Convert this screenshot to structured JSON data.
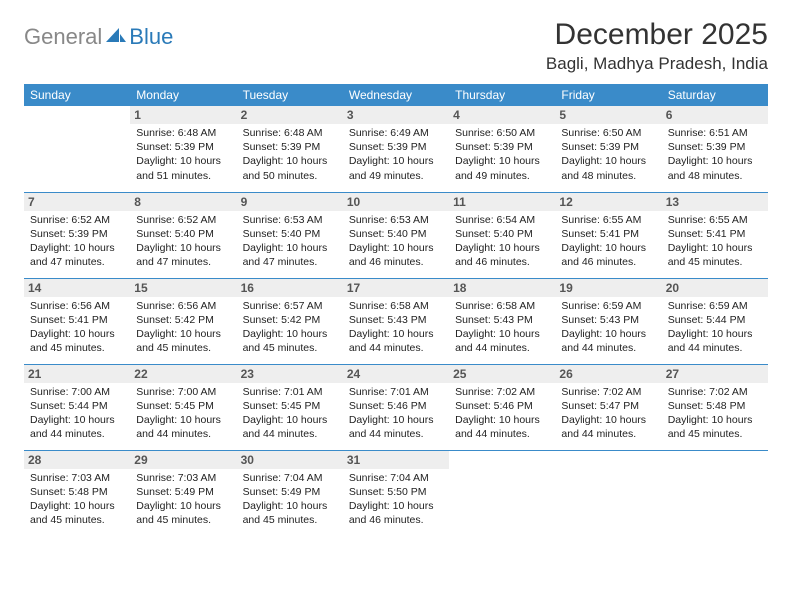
{
  "logo": {
    "part1": "General",
    "part2": "Blue"
  },
  "title": "December 2025",
  "location": "Bagli, Madhya Pradesh, India",
  "colors": {
    "header_bg": "#3a8bc9",
    "header_text": "#ffffff",
    "daynum_bg": "#eeeeee",
    "border": "#3a8bc9",
    "logo_gray": "#888888",
    "logo_blue": "#2a7ab8",
    "background": "#ffffff"
  },
  "day_headers": [
    "Sunday",
    "Monday",
    "Tuesday",
    "Wednesday",
    "Thursday",
    "Friday",
    "Saturday"
  ],
  "weeks": [
    [
      null,
      {
        "n": "1",
        "sr": "Sunrise: 6:48 AM",
        "ss": "Sunset: 5:39 PM",
        "dl": "Daylight: 10 hours and 51 minutes."
      },
      {
        "n": "2",
        "sr": "Sunrise: 6:48 AM",
        "ss": "Sunset: 5:39 PM",
        "dl": "Daylight: 10 hours and 50 minutes."
      },
      {
        "n": "3",
        "sr": "Sunrise: 6:49 AM",
        "ss": "Sunset: 5:39 PM",
        "dl": "Daylight: 10 hours and 49 minutes."
      },
      {
        "n": "4",
        "sr": "Sunrise: 6:50 AM",
        "ss": "Sunset: 5:39 PM",
        "dl": "Daylight: 10 hours and 49 minutes."
      },
      {
        "n": "5",
        "sr": "Sunrise: 6:50 AM",
        "ss": "Sunset: 5:39 PM",
        "dl": "Daylight: 10 hours and 48 minutes."
      },
      {
        "n": "6",
        "sr": "Sunrise: 6:51 AM",
        "ss": "Sunset: 5:39 PM",
        "dl": "Daylight: 10 hours and 48 minutes."
      }
    ],
    [
      {
        "n": "7",
        "sr": "Sunrise: 6:52 AM",
        "ss": "Sunset: 5:39 PM",
        "dl": "Daylight: 10 hours and 47 minutes."
      },
      {
        "n": "8",
        "sr": "Sunrise: 6:52 AM",
        "ss": "Sunset: 5:40 PM",
        "dl": "Daylight: 10 hours and 47 minutes."
      },
      {
        "n": "9",
        "sr": "Sunrise: 6:53 AM",
        "ss": "Sunset: 5:40 PM",
        "dl": "Daylight: 10 hours and 47 minutes."
      },
      {
        "n": "10",
        "sr": "Sunrise: 6:53 AM",
        "ss": "Sunset: 5:40 PM",
        "dl": "Daylight: 10 hours and 46 minutes."
      },
      {
        "n": "11",
        "sr": "Sunrise: 6:54 AM",
        "ss": "Sunset: 5:40 PM",
        "dl": "Daylight: 10 hours and 46 minutes."
      },
      {
        "n": "12",
        "sr": "Sunrise: 6:55 AM",
        "ss": "Sunset: 5:41 PM",
        "dl": "Daylight: 10 hours and 46 minutes."
      },
      {
        "n": "13",
        "sr": "Sunrise: 6:55 AM",
        "ss": "Sunset: 5:41 PM",
        "dl": "Daylight: 10 hours and 45 minutes."
      }
    ],
    [
      {
        "n": "14",
        "sr": "Sunrise: 6:56 AM",
        "ss": "Sunset: 5:41 PM",
        "dl": "Daylight: 10 hours and 45 minutes."
      },
      {
        "n": "15",
        "sr": "Sunrise: 6:56 AM",
        "ss": "Sunset: 5:42 PM",
        "dl": "Daylight: 10 hours and 45 minutes."
      },
      {
        "n": "16",
        "sr": "Sunrise: 6:57 AM",
        "ss": "Sunset: 5:42 PM",
        "dl": "Daylight: 10 hours and 45 minutes."
      },
      {
        "n": "17",
        "sr": "Sunrise: 6:58 AM",
        "ss": "Sunset: 5:43 PM",
        "dl": "Daylight: 10 hours and 44 minutes."
      },
      {
        "n": "18",
        "sr": "Sunrise: 6:58 AM",
        "ss": "Sunset: 5:43 PM",
        "dl": "Daylight: 10 hours and 44 minutes."
      },
      {
        "n": "19",
        "sr": "Sunrise: 6:59 AM",
        "ss": "Sunset: 5:43 PM",
        "dl": "Daylight: 10 hours and 44 minutes."
      },
      {
        "n": "20",
        "sr": "Sunrise: 6:59 AM",
        "ss": "Sunset: 5:44 PM",
        "dl": "Daylight: 10 hours and 44 minutes."
      }
    ],
    [
      {
        "n": "21",
        "sr": "Sunrise: 7:00 AM",
        "ss": "Sunset: 5:44 PM",
        "dl": "Daylight: 10 hours and 44 minutes."
      },
      {
        "n": "22",
        "sr": "Sunrise: 7:00 AM",
        "ss": "Sunset: 5:45 PM",
        "dl": "Daylight: 10 hours and 44 minutes."
      },
      {
        "n": "23",
        "sr": "Sunrise: 7:01 AM",
        "ss": "Sunset: 5:45 PM",
        "dl": "Daylight: 10 hours and 44 minutes."
      },
      {
        "n": "24",
        "sr": "Sunrise: 7:01 AM",
        "ss": "Sunset: 5:46 PM",
        "dl": "Daylight: 10 hours and 44 minutes."
      },
      {
        "n": "25",
        "sr": "Sunrise: 7:02 AM",
        "ss": "Sunset: 5:46 PM",
        "dl": "Daylight: 10 hours and 44 minutes."
      },
      {
        "n": "26",
        "sr": "Sunrise: 7:02 AM",
        "ss": "Sunset: 5:47 PM",
        "dl": "Daylight: 10 hours and 44 minutes."
      },
      {
        "n": "27",
        "sr": "Sunrise: 7:02 AM",
        "ss": "Sunset: 5:48 PM",
        "dl": "Daylight: 10 hours and 45 minutes."
      }
    ],
    [
      {
        "n": "28",
        "sr": "Sunrise: 7:03 AM",
        "ss": "Sunset: 5:48 PM",
        "dl": "Daylight: 10 hours and 45 minutes."
      },
      {
        "n": "29",
        "sr": "Sunrise: 7:03 AM",
        "ss": "Sunset: 5:49 PM",
        "dl": "Daylight: 10 hours and 45 minutes."
      },
      {
        "n": "30",
        "sr": "Sunrise: 7:04 AM",
        "ss": "Sunset: 5:49 PM",
        "dl": "Daylight: 10 hours and 45 minutes."
      },
      {
        "n": "31",
        "sr": "Sunrise: 7:04 AM",
        "ss": "Sunset: 5:50 PM",
        "dl": "Daylight: 10 hours and 46 minutes."
      },
      null,
      null,
      null
    ]
  ]
}
